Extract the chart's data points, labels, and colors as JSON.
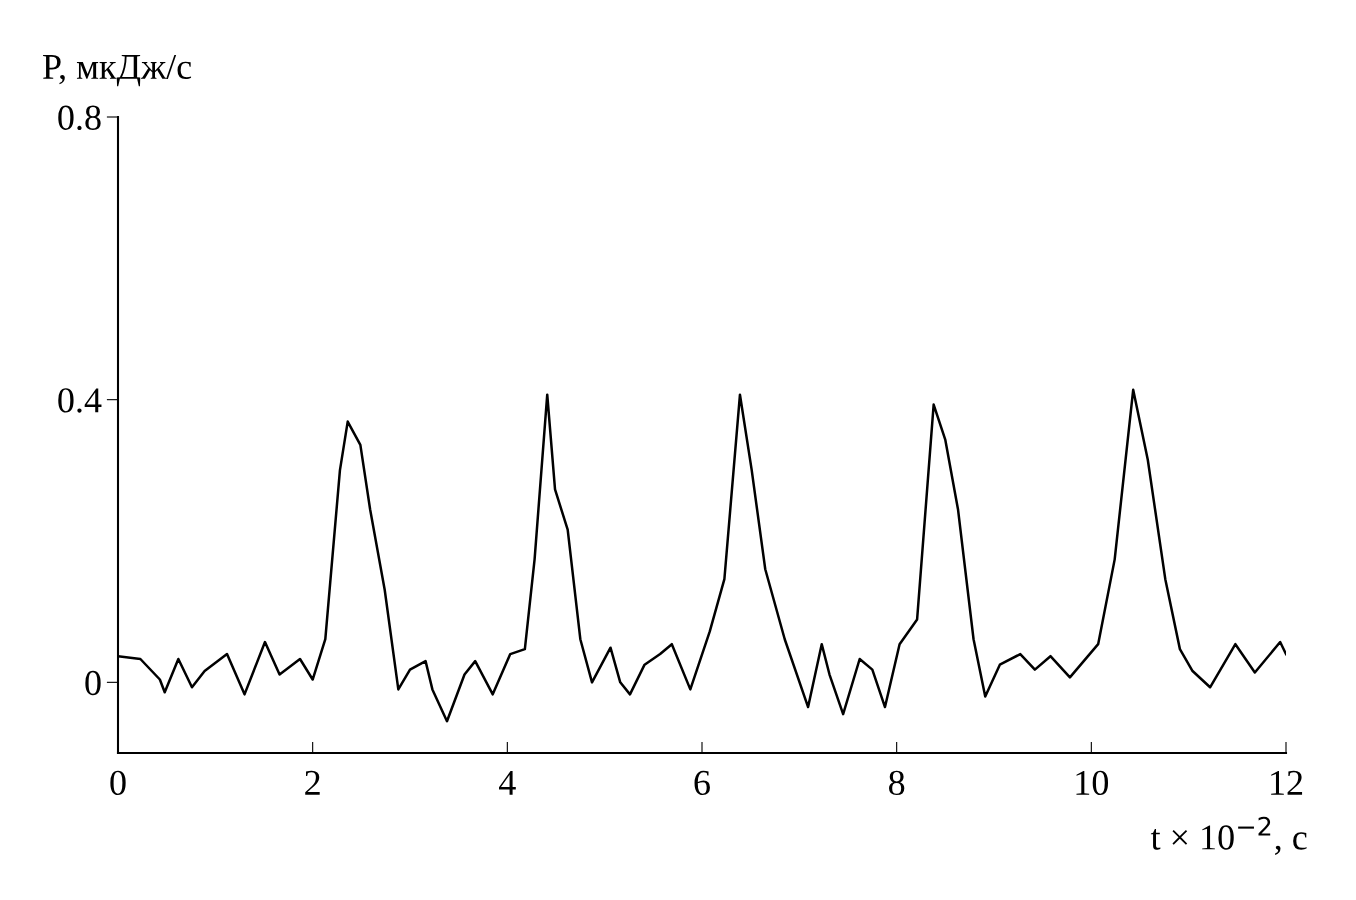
{
  "chart_data": {
    "type": "line",
    "xlabel": "t × 10$^{−2}$, с",
    "ylabel": "P, мкДж/с",
    "x": [
      0,
      0.23,
      0.43,
      0.48,
      0.62,
      0.76,
      0.89,
      1.12,
      1.3,
      1.51,
      1.66,
      1.87,
      2.0,
      2.13,
      2.28,
      2.36,
      2.49,
      2.59,
      2.74,
      2.88,
      3.0,
      3.16,
      3.23,
      3.38,
      3.56,
      3.67,
      3.85,
      4.03,
      4.18,
      4.28,
      4.41,
      4.49,
      4.62,
      4.75,
      4.87,
      5.06,
      5.16,
      5.26,
      5.41,
      5.57,
      5.69,
      5.88,
      6.08,
      6.23,
      6.39,
      6.51,
      6.65,
      6.85,
      7.09,
      7.23,
      7.31,
      7.45,
      7.62,
      7.75,
      7.88,
      8.03,
      8.21,
      8.38,
      8.5,
      8.63,
      8.79,
      8.91,
      9.06,
      9.27,
      9.42,
      9.58,
      9.78,
      10.07,
      10.24,
      10.43,
      10.58,
      10.76,
      10.91,
      11.04,
      11.22,
      11.48,
      11.68,
      11.94,
      12.0
    ],
    "series": [
      {
        "color": "#000000",
        "values": [
          0.037,
          0.033,
          0.004,
          -0.014,
          0.033,
          -0.007,
          0.016,
          0.04,
          -0.017,
          0.057,
          0.011,
          0.033,
          0.004,
          0.061,
          0.3,
          0.369,
          0.336,
          0.245,
          0.131,
          -0.01,
          0.018,
          0.03,
          -0.01,
          -0.055,
          0.011,
          0.03,
          -0.017,
          0.04,
          0.047,
          0.174,
          0.407,
          0.273,
          0.216,
          0.061,
          0.0,
          0.049,
          0.0,
          -0.017,
          0.025,
          0.04,
          0.054,
          -0.01,
          0.072,
          0.146,
          0.407,
          0.301,
          0.16,
          0.061,
          -0.035,
          0.054,
          0.011,
          -0.045,
          0.033,
          0.018,
          -0.035,
          0.054,
          0.089,
          0.393,
          0.343,
          0.245,
          0.061,
          -0.02,
          0.025,
          0.04,
          0.018,
          0.037,
          0.007,
          0.054,
          0.174,
          0.414,
          0.315,
          0.146,
          0.047,
          0.016,
          -0.007,
          0.054,
          0.014,
          0.057,
          0.04
        ]
      }
    ],
    "xlim": [
      0,
      12
    ],
    "xticks": [
      0,
      2,
      4,
      6,
      8,
      10,
      12
    ],
    "ylim": [
      -0.1,
      0.8
    ],
    "yticks": [
      0,
      0.4,
      0.8
    ],
    "grid": false,
    "line_style": "solid",
    "marker": "none"
  }
}
